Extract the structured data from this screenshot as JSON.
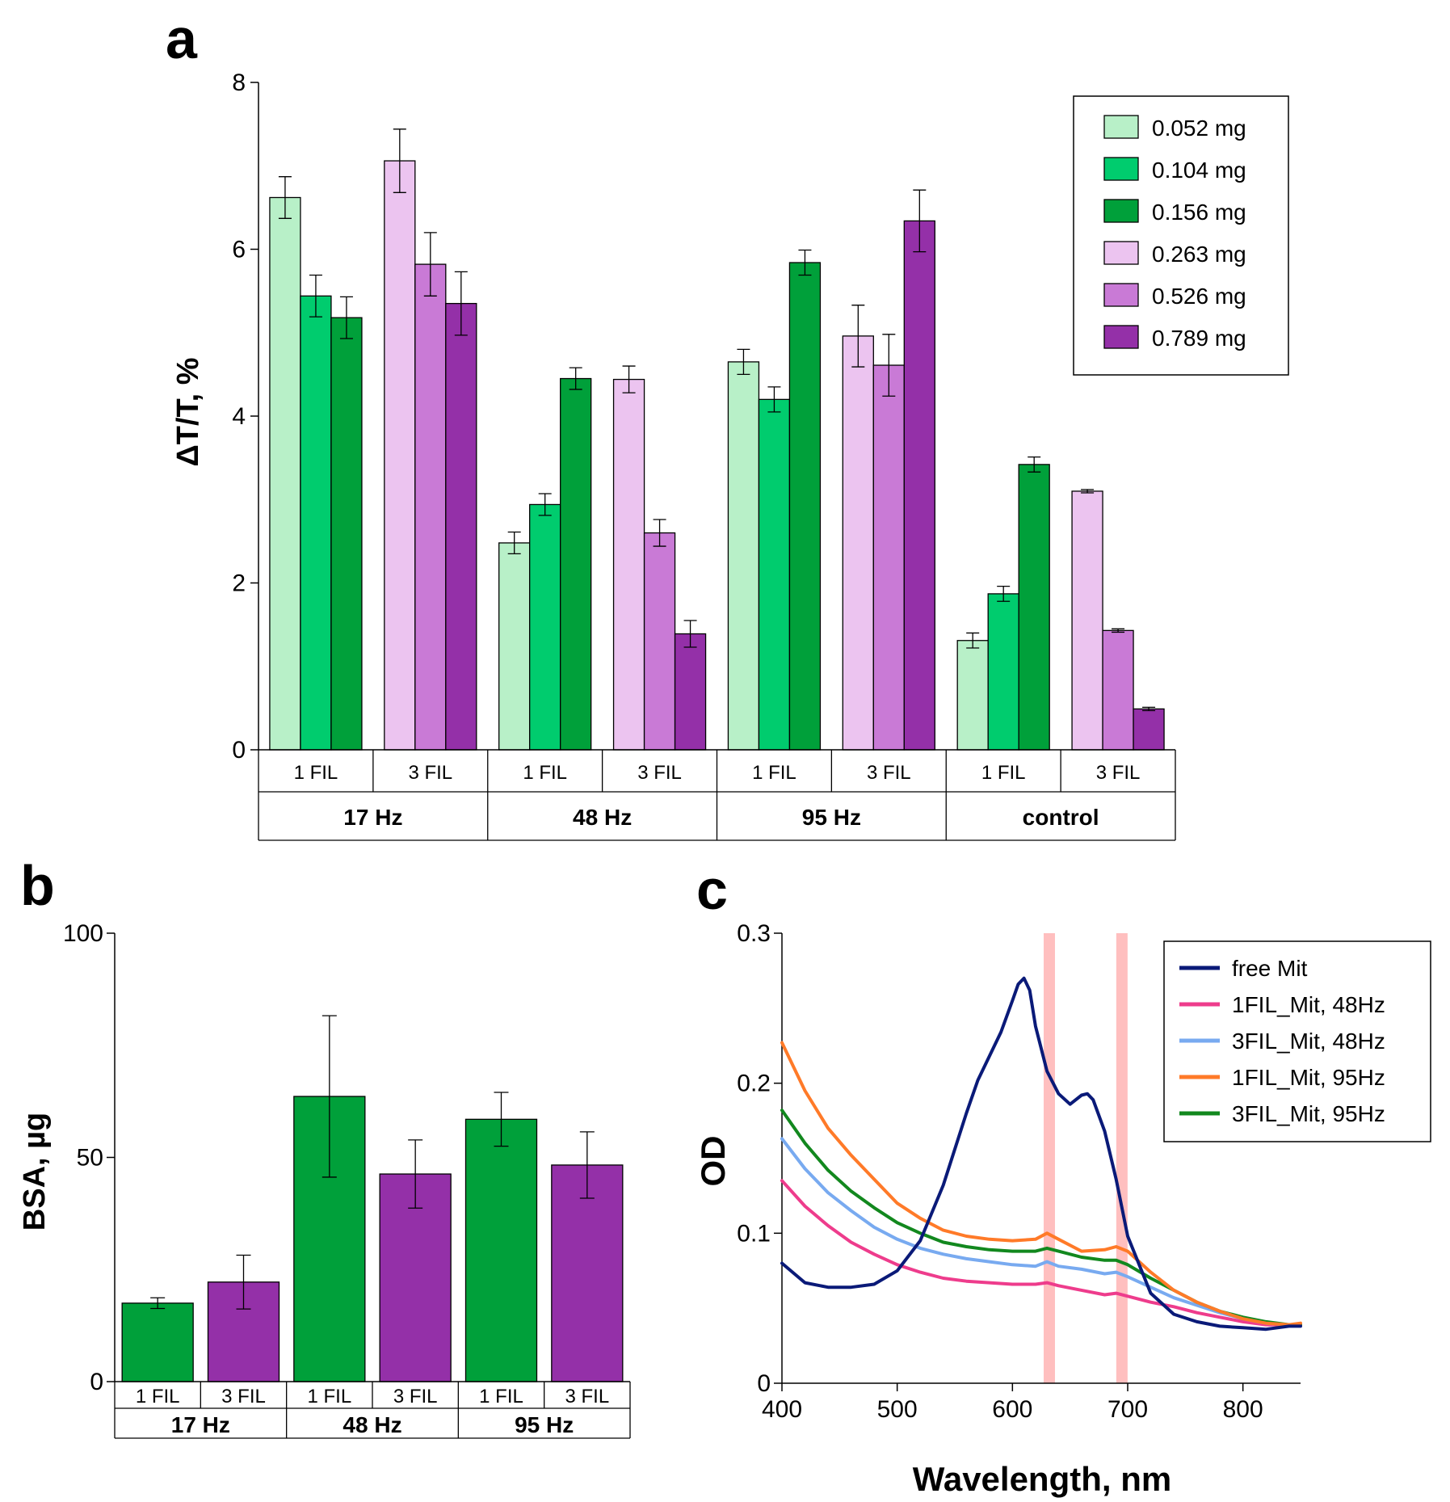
{
  "colors": {
    "0.052 mg": "#b8f0c8",
    "0.104 mg": "#00cc6e",
    "0.156 mg": "#00a03a",
    "0.263 mg": "#ecc4f0",
    "0.526 mg": "#c97ad6",
    "0.789 mg": "#9430a8",
    "bsa_1fil": "#00a03a",
    "bsa_3fil": "#9430a8",
    "free Mit": "#0a1a78",
    "1FIL_Mit, 48Hz": "#ee3c8c",
    "3FIL_Mit, 48Hz": "#78aaf0",
    "1FIL_Mit, 95Hz": "#ff7a28",
    "3FIL_Mit, 95Hz": "#12881e",
    "highlight": "#ffb8b8"
  },
  "chart_data": [
    {
      "panel": "a",
      "type": "bar",
      "ylabel": "ΔT/T, %",
      "ylim": [
        0,
        8
      ],
      "yticks": [
        "0",
        "2",
        "4",
        "6",
        "8"
      ],
      "groups": [
        "17 Hz",
        "48 Hz",
        "95 Hz",
        "control"
      ],
      "subgroups": [
        "1 FIL",
        "3 FIL"
      ],
      "legend": [
        "0.052 mg",
        "0.104 mg",
        "0.156 mg",
        "0.263 mg",
        "0.526 mg",
        "0.789 mg"
      ],
      "legend_position": "top-right",
      "bars": [
        {
          "group": "17 Hz",
          "sub": "1 FIL",
          "values": [
            6.62,
            5.44,
            5.18
          ],
          "errors": [
            0.25,
            0.25,
            0.25
          ],
          "series": [
            "0.052 mg",
            "0.104 mg",
            "0.156 mg"
          ]
        },
        {
          "group": "17 Hz",
          "sub": "3 FIL",
          "values": [
            7.06,
            5.82,
            5.35
          ],
          "errors": [
            0.38,
            0.38,
            0.38
          ],
          "series": [
            "0.263 mg",
            "0.526 mg",
            "0.789 mg"
          ]
        },
        {
          "group": "48 Hz",
          "sub": "1 FIL",
          "values": [
            2.48,
            2.94,
            4.45
          ],
          "errors": [
            0.13,
            0.13,
            0.13
          ],
          "series": [
            "0.052 mg",
            "0.104 mg",
            "0.156 mg"
          ]
        },
        {
          "group": "48 Hz",
          "sub": "3 FIL",
          "values": [
            4.44,
            2.6,
            1.39
          ],
          "errors": [
            0.16,
            0.16,
            0.16
          ],
          "series": [
            "0.263 mg",
            "0.526 mg",
            "0.789 mg"
          ]
        },
        {
          "group": "95 Hz",
          "sub": "1 FIL",
          "values": [
            4.65,
            4.2,
            5.84
          ],
          "errors": [
            0.15,
            0.15,
            0.15
          ],
          "series": [
            "0.052 mg",
            "0.104 mg",
            "0.156 mg"
          ]
        },
        {
          "group": "95 Hz",
          "sub": "3 FIL",
          "values": [
            4.96,
            4.61,
            6.34
          ],
          "errors": [
            0.37,
            0.37,
            0.37
          ],
          "series": [
            "0.263 mg",
            "0.526 mg",
            "0.789 mg"
          ]
        },
        {
          "group": "control",
          "sub": "1 FIL",
          "values": [
            1.31,
            1.87,
            3.42
          ],
          "errors": [
            0.09,
            0.09,
            0.09
          ],
          "series": [
            "0.052 mg",
            "0.104 mg",
            "0.156 mg"
          ]
        },
        {
          "group": "control",
          "sub": "3 FIL",
          "values": [
            3.1,
            1.43,
            0.49
          ],
          "errors": [
            0.02,
            0.02,
            0.02
          ],
          "series": [
            "0.263 mg",
            "0.526 mg",
            "0.789 mg"
          ]
        }
      ]
    },
    {
      "panel": "b",
      "type": "bar",
      "ylabel": "BSA, µg",
      "ylim": [
        0,
        100
      ],
      "yticks": [
        "0",
        "50",
        "100"
      ],
      "groups": [
        "17 Hz",
        "48 Hz",
        "95 Hz"
      ],
      "subgroups": [
        "1 FIL",
        "3 FIL"
      ],
      "values": [
        17.5,
        22.2,
        63.6,
        46.3,
        58.5,
        48.3
      ],
      "errors": [
        1.2,
        6.0,
        18.0,
        7.6,
        6.0,
        7.4
      ]
    },
    {
      "panel": "c",
      "type": "line",
      "xlabel": "Wavelength, nm",
      "ylabel": "OD",
      "xlim": [
        400,
        850
      ],
      "ylim": [
        0,
        0.3
      ],
      "xticks": [
        "400",
        "500",
        "600",
        "700",
        "800"
      ],
      "yticks": [
        "0",
        "0.1",
        "0.2",
        "0.3"
      ],
      "highlight_bands_nm": [
        632,
        695
      ],
      "legend_position": "top-right",
      "series": [
        {
          "name": "free Mit",
          "x": [
            400,
            420,
            440,
            460,
            480,
            500,
            520,
            540,
            560,
            570,
            580,
            590,
            600,
            605,
            610,
            615,
            620,
            630,
            640,
            650,
            660,
            665,
            670,
            680,
            690,
            700,
            720,
            740,
            760,
            780,
            800,
            820,
            840,
            850
          ],
          "y": [
            0.08,
            0.067,
            0.064,
            0.064,
            0.066,
            0.075,
            0.095,
            0.132,
            0.18,
            0.202,
            0.218,
            0.234,
            0.255,
            0.266,
            0.27,
            0.262,
            0.238,
            0.208,
            0.193,
            0.186,
            0.192,
            0.193,
            0.189,
            0.168,
            0.136,
            0.098,
            0.06,
            0.046,
            0.041,
            0.038,
            0.037,
            0.036,
            0.038,
            0.038
          ]
        },
        {
          "name": "1FIL_Mit, 48Hz",
          "x": [
            400,
            420,
            440,
            460,
            480,
            500,
            520,
            540,
            560,
            580,
            600,
            620,
            630,
            640,
            660,
            680,
            690,
            700,
            720,
            740,
            760,
            780,
            800,
            820,
            840,
            850
          ],
          "y": [
            0.135,
            0.118,
            0.105,
            0.094,
            0.086,
            0.079,
            0.074,
            0.07,
            0.068,
            0.067,
            0.066,
            0.066,
            0.067,
            0.065,
            0.062,
            0.059,
            0.06,
            0.058,
            0.054,
            0.051,
            0.047,
            0.044,
            0.041,
            0.039,
            0.039,
            0.039
          ]
        },
        {
          "name": "3FIL_Mit, 48Hz",
          "x": [
            400,
            420,
            440,
            460,
            480,
            500,
            520,
            540,
            560,
            580,
            600,
            620,
            630,
            640,
            660,
            680,
            690,
            700,
            720,
            740,
            760,
            780,
            800,
            820,
            840,
            850
          ],
          "y": [
            0.163,
            0.143,
            0.127,
            0.115,
            0.104,
            0.096,
            0.09,
            0.086,
            0.083,
            0.081,
            0.079,
            0.078,
            0.081,
            0.078,
            0.076,
            0.073,
            0.074,
            0.071,
            0.064,
            0.057,
            0.052,
            0.047,
            0.043,
            0.04,
            0.039,
            0.039
          ]
        },
        {
          "name": "1FIL_Mit, 95Hz",
          "x": [
            400,
            420,
            440,
            460,
            480,
            500,
            520,
            540,
            560,
            580,
            600,
            620,
            630,
            640,
            660,
            680,
            690,
            700,
            720,
            740,
            760,
            780,
            800,
            820,
            840,
            850
          ],
          "y": [
            0.227,
            0.195,
            0.17,
            0.152,
            0.136,
            0.12,
            0.11,
            0.102,
            0.098,
            0.096,
            0.095,
            0.096,
            0.1,
            0.096,
            0.088,
            0.089,
            0.091,
            0.088,
            0.074,
            0.062,
            0.054,
            0.048,
            0.043,
            0.04,
            0.039,
            0.04
          ]
        },
        {
          "name": "3FIL_Mit, 95Hz",
          "x": [
            400,
            420,
            440,
            460,
            480,
            500,
            520,
            540,
            560,
            580,
            600,
            620,
            630,
            640,
            660,
            680,
            690,
            700,
            720,
            740,
            760,
            780,
            800,
            820,
            840,
            850
          ],
          "y": [
            0.182,
            0.16,
            0.142,
            0.128,
            0.117,
            0.107,
            0.1,
            0.094,
            0.091,
            0.089,
            0.088,
            0.088,
            0.09,
            0.088,
            0.084,
            0.082,
            0.082,
            0.079,
            0.07,
            0.062,
            0.054,
            0.048,
            0.044,
            0.041,
            0.039,
            0.039
          ]
        }
      ]
    }
  ],
  "panels": {
    "a": {
      "letter": "a"
    },
    "b": {
      "letter": "b"
    },
    "c": {
      "letter": "c"
    }
  }
}
